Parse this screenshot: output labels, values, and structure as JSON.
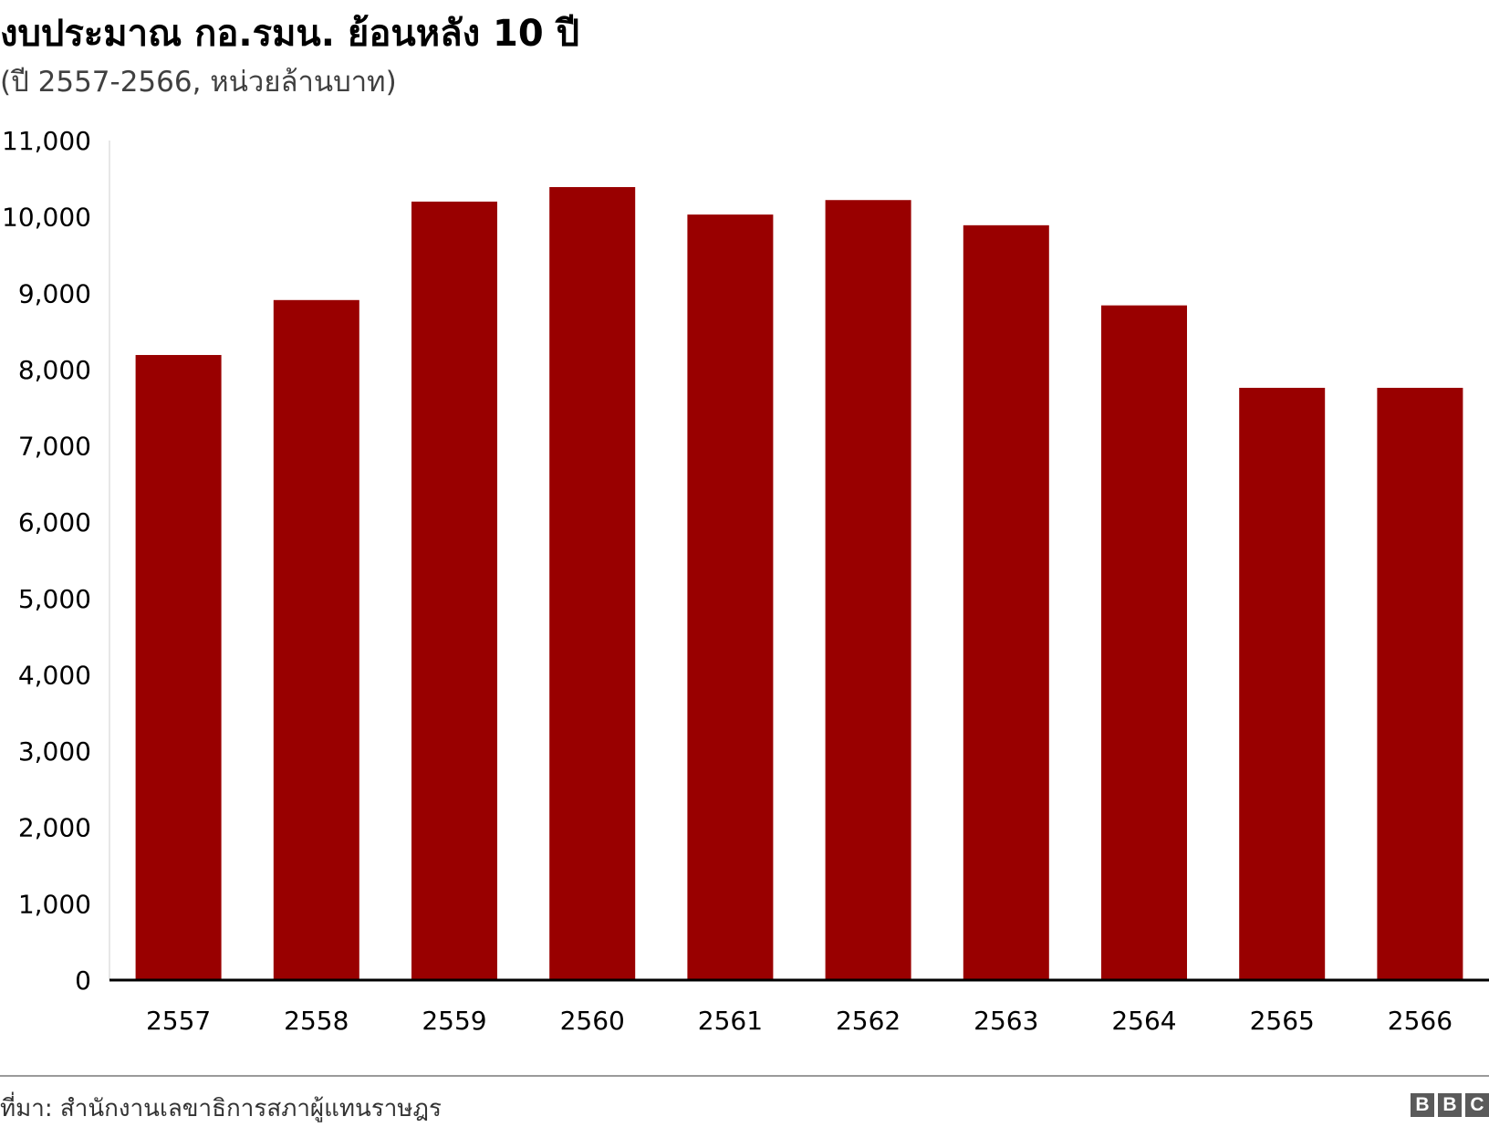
{
  "header": {
    "title": "งบประมาณ กอ.รมน. ย้อนหลัง 10 ปี",
    "subtitle": "(ปี 2557-2566, หน่วยล้านบาท)"
  },
  "footer": {
    "source": "ที่มา: สำนักงานเลขาธิการสภาผู้แทนราษฎร",
    "logo_letters": [
      "B",
      "B",
      "C"
    ]
  },
  "chart_data": {
    "type": "bar",
    "title": "งบประมาณ กอ.รมน. ย้อนหลัง 10 ปี",
    "subtitle": "(ปี 2557-2566, หน่วยล้านบาท)",
    "categories": [
      "2557",
      "2558",
      "2559",
      "2560",
      "2561",
      "2562",
      "2563",
      "2564",
      "2565",
      "2566"
    ],
    "values": [
      8190,
      8910,
      10200,
      10390,
      10030,
      10220,
      9890,
      8840,
      7760,
      7760
    ],
    "ylim": [
      0,
      11000
    ],
    "yticks": [
      0,
      1000,
      2000,
      3000,
      4000,
      5000,
      6000,
      7000,
      8000,
      9000,
      10000,
      11000
    ],
    "ytick_labels": [
      "0",
      "1,000",
      "2,000",
      "3,000",
      "4,000",
      "5,000",
      "6,000",
      "7,000",
      "8,000",
      "9,000",
      "10,000",
      "11,000"
    ],
    "bar_color": "#990000",
    "grid": false
  }
}
